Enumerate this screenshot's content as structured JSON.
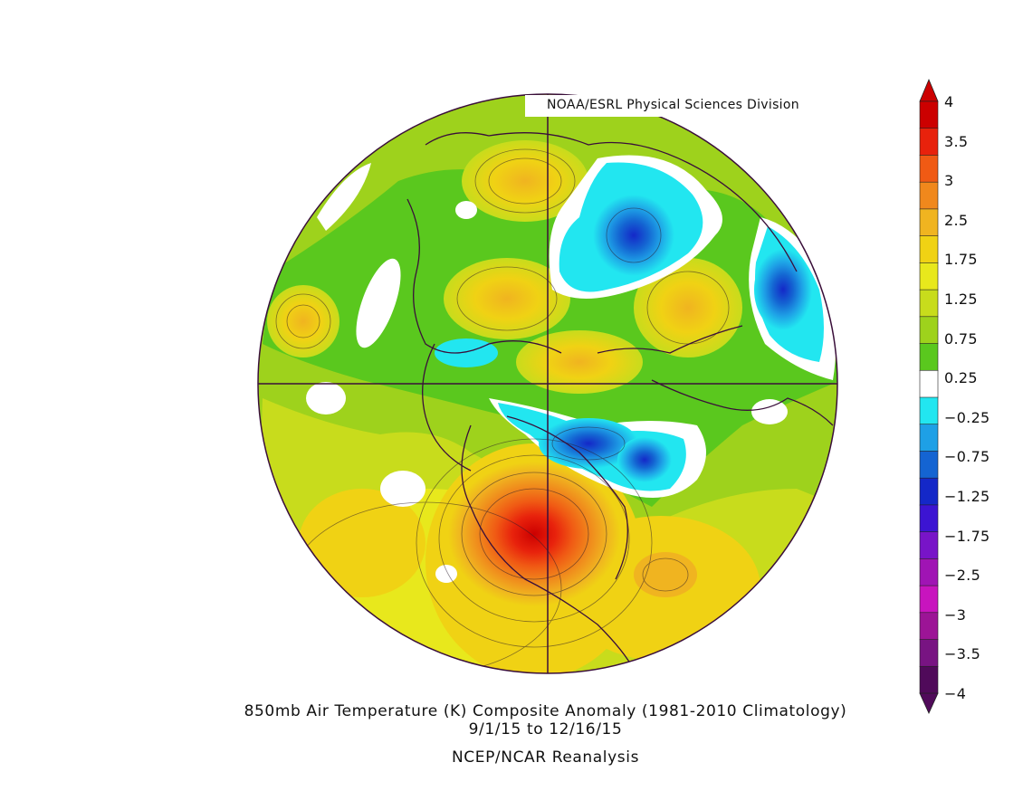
{
  "credit": "NOAA/ESRL Physical Sciences Division",
  "caption": {
    "line1": "850mb Air Temperature (K) Composite Anomaly (1981-2010 Climatology)",
    "line2": "9/1/15   to 12/16/15",
    "line3": "NCEP/NCAR Reanalysis"
  },
  "colorbar": {
    "labels": [
      "4",
      "3.5",
      "3",
      "2.5",
      "1.75",
      "1.25",
      "0.75",
      "0.25",
      "−0.25",
      "−0.75",
      "−1.25",
      "−1.75",
      "−2.5",
      "−3",
      "−3.5",
      "−4"
    ],
    "colors": [
      "#cc0000",
      "#e8220c",
      "#f05a14",
      "#f0881c",
      "#f0b420",
      "#f0d214",
      "#e8e81c",
      "#c8dc1c",
      "#9ed21c",
      "#5ac81e",
      "#ffffff",
      "#22e6f0",
      "#1ea0e6",
      "#1464d2",
      "#1428c8",
      "#3c14d2",
      "#7814c8",
      "#a014b4",
      "#c814be",
      "#9c1496",
      "#781482",
      "#500a5a"
    ]
  },
  "map": {
    "projection": "north-polar-stereographic",
    "field": "850mb air temperature anomaly (K)"
  }
}
